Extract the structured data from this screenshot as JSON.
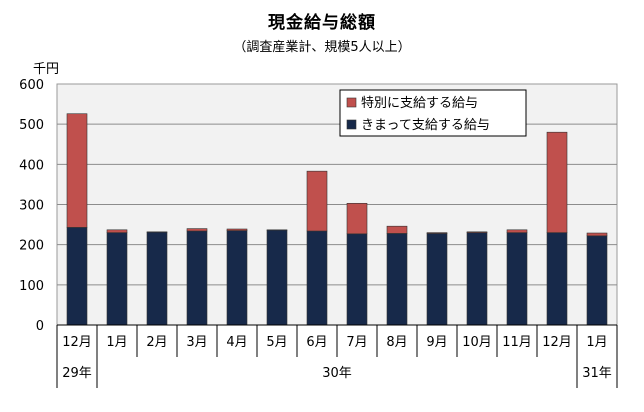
{
  "chart_data": {
    "type": "bar",
    "stacked": true,
    "title": "現金給与総額",
    "subtitle": "（調査産業計、規模5人以上）",
    "ylabel": "千円",
    "ylim": [
      0,
      600
    ],
    "yticks": [
      "0",
      "100",
      "200",
      "300",
      "400",
      "500",
      "600"
    ],
    "grid": true,
    "legend_position": "top-right",
    "categories": [
      "12月",
      "1月",
      "2月",
      "3月",
      "4月",
      "5月",
      "6月",
      "7月",
      "8月",
      "9月",
      "10月",
      "11月",
      "12月",
      "1月"
    ],
    "year_groups": [
      {
        "label": "29年",
        "start": 0,
        "end": 0
      },
      {
        "label": "30年",
        "start": 1,
        "end": 12
      },
      {
        "label": "31年",
        "start": 13,
        "end": 13
      }
    ],
    "series": [
      {
        "name": "きまって支給する給与",
        "color": "#17294a",
        "values": [
          243,
          230,
          231,
          234,
          235,
          236,
          234,
          227,
          228,
          228,
          230,
          230,
          230,
          222
        ]
      },
      {
        "name": "特別に支給する給与",
        "color": "#c0504d",
        "values": [
          283,
          7,
          1,
          6,
          4,
          1,
          149,
          76,
          18,
          2,
          2,
          7,
          250,
          7
        ]
      }
    ]
  }
}
